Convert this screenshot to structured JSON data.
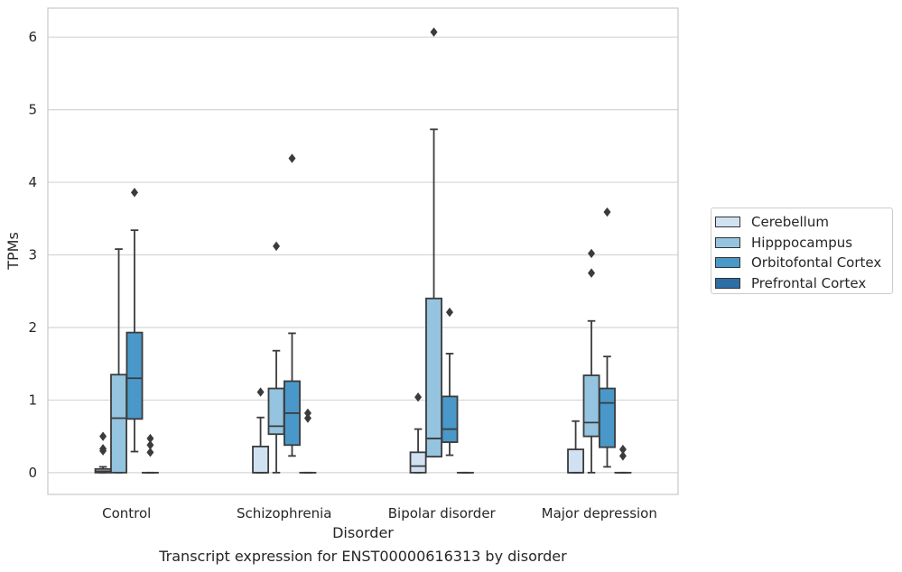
{
  "chart_data": {
    "type": "box",
    "title": "Transcript expression for ENST00000616313 by disorder",
    "xlabel": "Disorder",
    "ylabel": "TPMs",
    "ylim": [
      -0.3,
      6.4
    ],
    "yticks": [
      0,
      1,
      2,
      3,
      4,
      5,
      6
    ],
    "grid": true,
    "legend_position": "right",
    "categories": [
      "Control",
      "Schizophrenia",
      "Bipolar disorder",
      "Major depression"
    ],
    "series": [
      {
        "name": "Cerebellum",
        "color": "#d0e1f2",
        "boxes": [
          {
            "whislo": 0,
            "q1": 0,
            "med": 0.02,
            "q3": 0.05,
            "whishi": 0.08,
            "fliers": [
              0.3,
              0.33,
              0.5
            ]
          },
          {
            "whislo": 0,
            "q1": 0,
            "med": 0,
            "q3": 0.36,
            "whishi": 0.76,
            "fliers": [
              1.11
            ]
          },
          {
            "whislo": 0,
            "q1": 0,
            "med": 0.09,
            "q3": 0.28,
            "whishi": 0.6,
            "fliers": [
              1.04
            ]
          },
          {
            "whislo": 0,
            "q1": 0,
            "med": 0,
            "q3": 0.32,
            "whishi": 0.71,
            "fliers": []
          }
        ]
      },
      {
        "name": "Hipppocampus",
        "color": "#94c4df",
        "boxes": [
          {
            "whislo": 0,
            "q1": 0,
            "med": 0.75,
            "q3": 1.35,
            "whishi": 3.08,
            "fliers": []
          },
          {
            "whislo": 0,
            "q1": 0.53,
            "med": 0.64,
            "q3": 1.16,
            "whishi": 1.68,
            "fliers": [
              3.12
            ]
          },
          {
            "whislo": 0.22,
            "q1": 0.22,
            "med": 0.47,
            "q3": 2.4,
            "whishi": 4.73,
            "fliers": [
              6.07
            ]
          },
          {
            "whislo": 0,
            "q1": 0.5,
            "med": 0.69,
            "q3": 1.34,
            "whishi": 2.09,
            "fliers": [
              2.75,
              3.02
            ]
          }
        ]
      },
      {
        "name": "Orbitofontal Cortex",
        "color": "#4a98c9",
        "boxes": [
          {
            "whislo": 0.29,
            "q1": 0.74,
            "med": 1.3,
            "q3": 1.93,
            "whishi": 3.34,
            "fliers": [
              3.86
            ]
          },
          {
            "whislo": 0.23,
            "q1": 0.38,
            "med": 0.82,
            "q3": 1.26,
            "whishi": 1.92,
            "fliers": [
              4.33
            ]
          },
          {
            "whislo": 0.24,
            "q1": 0.42,
            "med": 0.6,
            "q3": 1.05,
            "whishi": 1.64,
            "fliers": [
              2.21
            ]
          },
          {
            "whislo": 0.08,
            "q1": 0.35,
            "med": 0.96,
            "q3": 1.16,
            "whishi": 1.6,
            "fliers": [
              3.59
            ]
          }
        ]
      },
      {
        "name": "Prefrontal Cortex",
        "color": "#2e6ea6",
        "boxes": [
          {
            "whislo": 0,
            "q1": 0,
            "med": 0,
            "q3": 0,
            "whishi": 0,
            "fliers": [
              0.28,
              0.38,
              0.47
            ]
          },
          {
            "whislo": 0,
            "q1": 0,
            "med": 0,
            "q3": 0,
            "whishi": 0,
            "fliers": [
              0.75,
              0.82
            ]
          },
          {
            "whislo": 0,
            "q1": 0,
            "med": 0,
            "q3": 0,
            "whishi": 0,
            "fliers": []
          },
          {
            "whislo": 0,
            "q1": 0,
            "med": 0,
            "q3": 0,
            "whishi": 0,
            "fliers": [
              0.23,
              0.32
            ]
          }
        ]
      }
    ]
  }
}
